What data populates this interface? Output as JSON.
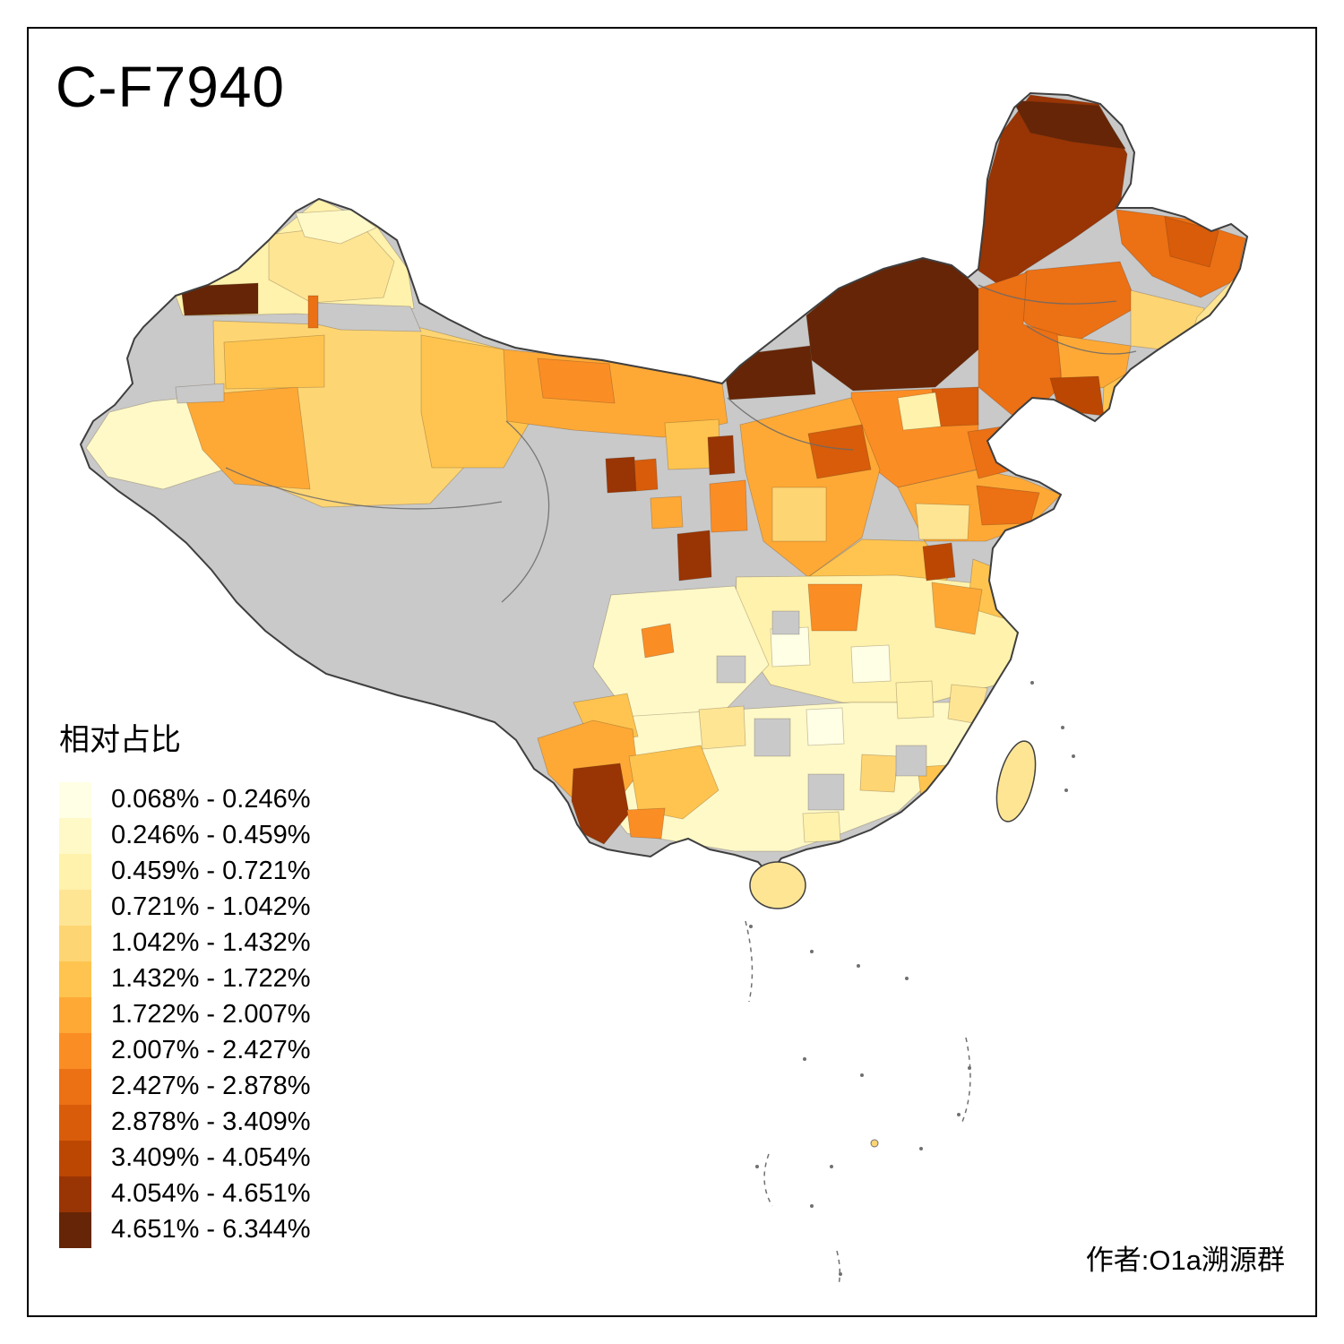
{
  "title": "C-F7940",
  "legend": {
    "title": "相对占比",
    "items": [
      {
        "range": "0.068% - 0.246%",
        "color": "#FFFFE5"
      },
      {
        "range": "0.246% - 0.459%",
        "color": "#FFF9C8"
      },
      {
        "range": "0.459% - 0.721%",
        "color": "#FFF2AC"
      },
      {
        "range": "0.721% - 1.042%",
        "color": "#FEE594"
      },
      {
        "range": "1.042% - 1.432%",
        "color": "#FED573"
      },
      {
        "range": "1.432% - 1.722%",
        "color": "#FEC44F"
      },
      {
        "range": "1.722% - 2.007%",
        "color": "#FEA936"
      },
      {
        "range": "2.007% - 2.427%",
        "color": "#FB8D25"
      },
      {
        "range": "2.427% - 2.878%",
        "color": "#EC7014"
      },
      {
        "range": "2.878% - 3.409%",
        "color": "#D85C0A"
      },
      {
        "range": "3.409% - 4.054%",
        "color": "#BC4702"
      },
      {
        "range": "4.054% - 4.651%",
        "color": "#993404"
      },
      {
        "range": "4.651% - 6.344%",
        "color": "#662506"
      }
    ]
  },
  "attribution": "作者:O1a溯源群",
  "map": {
    "no_data_color": "#C9C9C9",
    "outline_color": "#3F3F3F",
    "region_classes": {
      "china-base": "nodata",
      "xj-north": 2,
      "xj-north-patch": 3,
      "xj-altai-pale": 1,
      "xj-gray-band": "nodata",
      "xj-west": 1,
      "xj-central": 4,
      "xj-kashgar": 6,
      "xj-aksu": 5,
      "xj-east": 5,
      "xj-ili-dark": 12,
      "xj-sliver": 8,
      "xj-gray-small": "nodata",
      "gansu-corridor": 6,
      "gansu-patch": 7,
      "alashan": 5,
      "xining-spot": 6,
      "gansu-spot-a": 11,
      "gansu-spot-b": 9,
      "ningxia-dark": 11,
      "gansu-south-dark": 11,
      "im-west": 12,
      "im-central": 12,
      "hlj-main": 11,
      "hlj-top": 12,
      "ne-east": 8,
      "ne-east-inner": 9,
      "jilin-west": 8,
      "jilin-south": 8,
      "jilin-east-pale": 4,
      "ne-coast": 3,
      "liaoning": 6,
      "liaoning-dark": 10,
      "liaodong": 5,
      "chifeng": 9,
      "hebei": 7,
      "beijing-pale": 2,
      "hebei-east": 8,
      "shanxi": 6,
      "shanxi-dark": 9,
      "shanxi-pale": 4,
      "shaanxi-mid": 7,
      "shandong": 6,
      "shandong-east": 8,
      "shandong-pale": 3,
      "henan": 5,
      "henan-dark": 10,
      "central-belt": 2,
      "jiangsu-coast": 5,
      "hubei-spot": 7,
      "anhui-spot": 6,
      "sichuan": 1,
      "chengdu-spot": 7,
      "south-central": 1,
      "guangxi-orange": 5,
      "jiangxi-spot": 4,
      "zhejiang-patch": 3,
      "guizhou-patch": 3,
      "fujian-spot": 5,
      "gd-patch": 2,
      "pale-cell-1": 0,
      "pale-cell-2": 0,
      "pale-cell-3": 0,
      "pale-cell-4": 2,
      "gray-cell-1": "nodata",
      "gray-cell-2": "nodata",
      "gray-cell-3": "nodata",
      "gray-cell-4": "nodata",
      "gray-cell-5": "nodata",
      "yunnan-north": 5,
      "yunnan-west": 6,
      "yunnan-dark": 11,
      "yunnan-se": 7,
      "taiwan": 3,
      "hainan": 3,
      "scs-islet": 4
    }
  }
}
